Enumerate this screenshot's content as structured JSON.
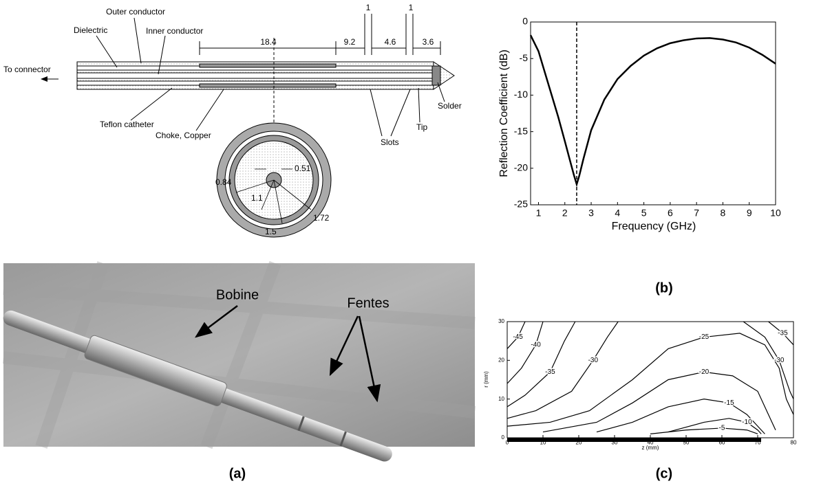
{
  "diagram": {
    "labels": [
      "Outer conductor",
      "Dielectric",
      "Inner conductor",
      "To connector",
      "Teflon catheter",
      "Choke, Copper",
      "Slots",
      "Tip",
      "Solder",
      "18.4",
      "9.2",
      "1",
      "4.6",
      "1",
      "3.6",
      "0.51",
      "0.84",
      "1.1",
      "1.72",
      "1.5"
    ]
  },
  "photo": {
    "labels": [
      "Bobine",
      "Fentes"
    ]
  },
  "captions": [
    "(a)",
    "(b)",
    "(c)"
  ],
  "chart_data": [
    {
      "type": "line",
      "xlabel": "Frequency (GHz)",
      "ylabel": "Reflection Coefficient (dB)",
      "x": [
        0.7,
        1,
        1.25,
        1.5,
        1.75,
        2,
        2.2,
        2.35,
        2.45,
        2.55,
        2.7,
        3,
        3.5,
        4,
        4.5,
        5,
        5.5,
        6,
        6.5,
        7,
        7.5,
        8,
        8.5,
        9,
        9.5,
        10
      ],
      "series": [
        {
          "color": "#000000",
          "values": [
            -1.8,
            -4,
            -7,
            -10,
            -13,
            -16.3,
            -19,
            -21,
            -22.2,
            -21,
            -18.8,
            -14.8,
            -10.6,
            -7.8,
            -6,
            -4.6,
            -3.6,
            -2.9,
            -2.5,
            -2.25,
            -2.2,
            -2.4,
            -2.8,
            -3.5,
            -4.5,
            -5.7
          ]
        }
      ],
      "vline": 2.45,
      "xlim": [
        0.7,
        10
      ],
      "xticks": [
        1,
        2,
        3,
        4,
        5,
        6,
        7,
        8,
        9,
        10
      ],
      "ylim": [
        -25,
        0
      ],
      "yticks": [
        0,
        -5,
        -10,
        -15,
        -20,
        -25
      ]
    },
    {
      "type": "contour",
      "xlabel": "z (mm)",
      "ylabel": "r (mm)",
      "series": [
        {
          "name": "-45",
          "x": [
            0,
            3,
            5
          ],
          "y": [
            23,
            26,
            30
          ]
        },
        {
          "name": "-40",
          "x": [
            0,
            4,
            8,
            10
          ],
          "y": [
            14,
            18,
            24,
            30
          ]
        },
        {
          "name": "-35",
          "x": [
            0,
            5,
            12,
            16,
            19
          ],
          "y": [
            8,
            11,
            17,
            25,
            30
          ]
        },
        {
          "name": "-30",
          "x": [
            0,
            8,
            18,
            24,
            28,
            31
          ],
          "y": [
            5,
            7,
            12,
            20,
            26,
            30
          ]
        },
        {
          "name": "-25",
          "x": [
            0,
            12,
            23,
            35,
            45,
            55,
            65,
            72,
            76,
            78,
            80
          ],
          "y": [
            3,
            4,
            7,
            15,
            23,
            26,
            27,
            24,
            18,
            10,
            6
          ]
        },
        {
          "name": "-20",
          "x": [
            10,
            25,
            35,
            45,
            55,
            63,
            70,
            73,
            75
          ],
          "y": [
            1.5,
            4,
            9,
            15,
            17,
            16,
            12,
            6,
            2
          ]
        },
        {
          "name": "-15",
          "x": [
            25,
            35,
            45,
            55,
            62,
            67,
            70,
            72
          ],
          "y": [
            1.5,
            4,
            8,
            10,
            9,
            6,
            3,
            1
          ]
        },
        {
          "name": "-10",
          "x": [
            45,
            55,
            62,
            67,
            70,
            71
          ],
          "y": [
            1.5,
            4,
            5,
            4,
            2,
            1
          ]
        },
        {
          "name": "-5",
          "x": [
            40,
            50,
            60,
            67,
            70
          ],
          "y": [
            1,
            2,
            2.5,
            2,
            1
          ]
        },
        {
          "name": "-30",
          "x": [
            66,
            72,
            76,
            79,
            80
          ],
          "y": [
            30,
            26,
            20,
            12,
            10
          ]
        },
        {
          "name": "-35",
          "x": [
            73,
            77,
            80
          ],
          "y": [
            30,
            27,
            24
          ]
        }
      ],
      "xlim": [
        0,
        80
      ],
      "xticks": [
        0,
        10,
        20,
        30,
        40,
        50,
        60,
        70,
        80
      ],
      "ylim": [
        0,
        30
      ],
      "yticks": [
        0,
        10,
        20,
        30
      ]
    }
  ]
}
